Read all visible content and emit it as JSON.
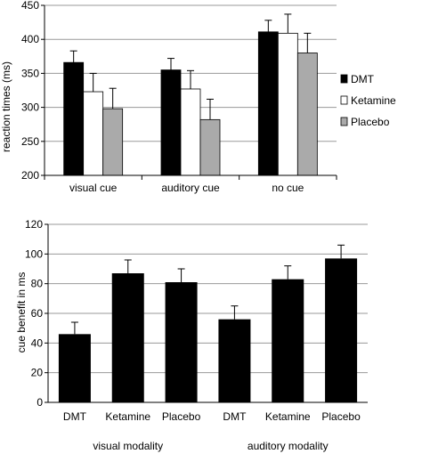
{
  "colors": {
    "dmt": "#000000",
    "ketamine": "#ffffff",
    "placebo": "#aaaaaa",
    "grid": "#9a9a9a",
    "axis": "#000000"
  },
  "chart_data": [
    {
      "type": "bar",
      "ylabel": "reaction times (ms)",
      "ylim": [
        200,
        450
      ],
      "yticks": [
        200,
        250,
        300,
        350,
        400,
        450
      ],
      "grid": true,
      "legend_placement": "right",
      "categories": [
        "visual cue",
        "auditory cue",
        "no cue"
      ],
      "series": [
        {
          "name": "DMT",
          "color": "#000000",
          "values": [
            366,
            355,
            411
          ],
          "errors": [
            17,
            17,
            17
          ]
        },
        {
          "name": "Ketamine",
          "color": "#ffffff",
          "values": [
            323,
            327,
            409
          ],
          "errors": [
            27,
            27,
            28
          ]
        },
        {
          "name": "Placebo",
          "color": "#aaaaaa",
          "values": [
            298,
            282,
            380
          ],
          "errors": [
            30,
            30,
            29
          ]
        }
      ]
    },
    {
      "type": "bar",
      "ylabel": "cue benefit in ms",
      "ylim": [
        0,
        120
      ],
      "yticks": [
        0,
        20,
        40,
        60,
        80,
        100,
        120
      ],
      "grid": true,
      "categories": [
        "DMT",
        "Ketamine",
        "Placebo",
        "DMT",
        "Ketamine",
        "Placebo"
      ],
      "groups": [
        "visual modality",
        "auditory modality"
      ],
      "values": [
        46,
        87,
        81,
        56,
        83,
        97
      ],
      "errors": [
        8,
        9,
        9,
        9,
        9,
        9
      ],
      "color": "#000000"
    }
  ]
}
